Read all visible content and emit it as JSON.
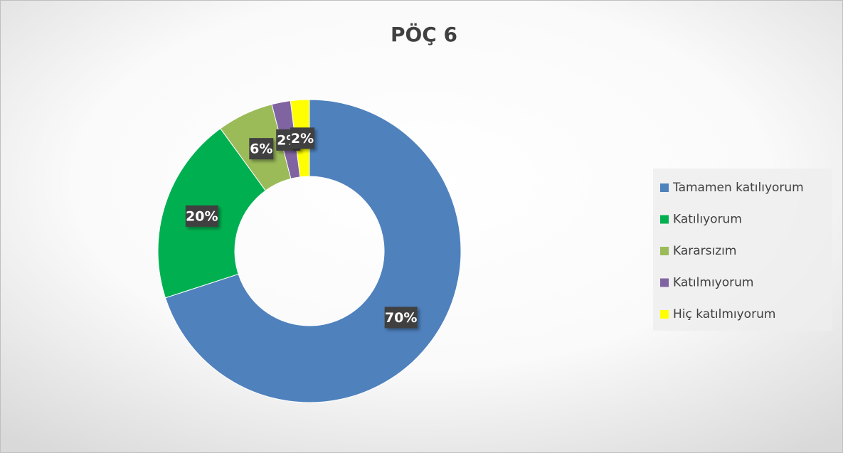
{
  "chart_data": {
    "type": "doughnut",
    "title": "PÖÇ 6",
    "categories": [
      "Tamamen katılıyorum",
      "Katılıyorum",
      "Kararsızım",
      "Katılmıyorum",
      "Hiç katılmıyorum"
    ],
    "values": [
      70,
      20,
      6,
      2,
      2
    ],
    "value_labels": [
      "70%",
      "20%",
      "6%",
      "2%",
      "2%"
    ],
    "colors": [
      "#4f81bd",
      "#00b050",
      "#9bbb59",
      "#8064a2",
      "#ffff00"
    ],
    "legend": "right"
  }
}
